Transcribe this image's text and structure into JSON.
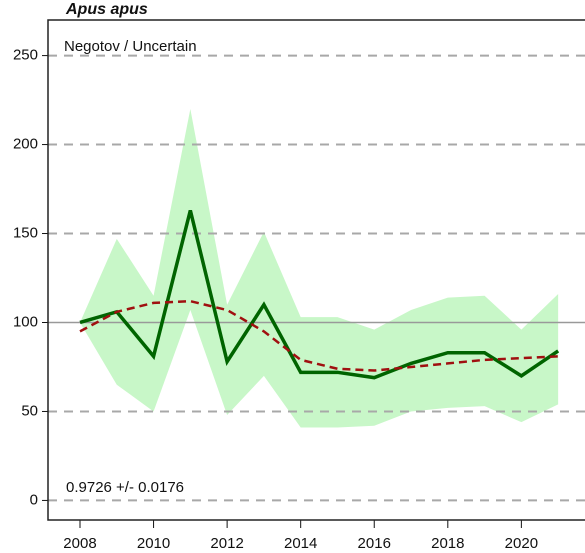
{
  "chart_data": {
    "type": "line",
    "title": "Apus apus",
    "subtitle": "Negotov / Uncertain",
    "annotation": "0.9726 +/- 0.0176",
    "x": [
      2008,
      2009,
      2010,
      2011,
      2012,
      2013,
      2014,
      2015,
      2016,
      2017,
      2018,
      2019,
      2020,
      2021
    ],
    "series": [
      {
        "color": "#006400",
        "style": "solid",
        "values": [
          100,
          106,
          81,
          163,
          78,
          110,
          72,
          72,
          69,
          77,
          83,
          83,
          70,
          84
        ]
      },
      {
        "color": "#a01010",
        "style": "dashed",
        "values": [
          95,
          106,
          111,
          112,
          107,
          95,
          79,
          74,
          73,
          75,
          77,
          79,
          80,
          81
        ]
      }
    ],
    "band": {
      "color": "#c8f7c8",
      "upper": [
        100,
        147,
        115,
        220,
        110,
        151,
        103,
        103,
        96,
        107,
        114,
        115,
        96,
        116
      ],
      "lower": [
        100,
        65,
        50,
        107,
        48,
        70,
        41,
        41,
        42,
        50,
        52,
        53,
        44,
        54
      ]
    },
    "reference_line": 100,
    "xlim": [
      2007.13,
      2021.73
    ],
    "xticks": [
      2008,
      2010,
      2012,
      2014,
      2016,
      2018,
      2020
    ],
    "ylim": [
      -11,
      270
    ],
    "yticks": [
      0,
      50,
      100,
      150,
      200,
      250
    ],
    "grid": true
  }
}
